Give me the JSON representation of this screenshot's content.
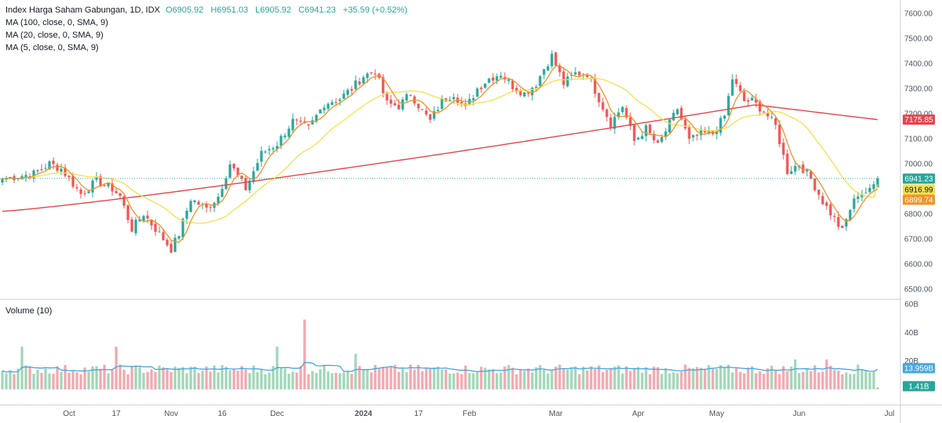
{
  "legend": {
    "symbol": "Index Harga Saham Gabungan, 1D, IDX",
    "open": "O6905.92",
    "high": "H6951.03",
    "low": "L6905.92",
    "close": "C6941.23",
    "change": "+35.59 (+0.52%)",
    "ma100": "MA (100, close, 0, SMA, 9)",
    "ma20": "MA (20, close, 0, SMA, 9)",
    "ma5": "MA (5, close, 0, SMA, 9)"
  },
  "volume_label": "Volume (10)",
  "colors": {
    "up": "#26a69a",
    "down": "#ef5350",
    "up_volume": "#9fd6b7",
    "down_volume": "#f2a7ae",
    "ma100": "#e0474c",
    "ma20": "#f5e04c",
    "ma5": "#f0922b",
    "volume_ma": "#48a6e0"
  },
  "price_tags": [
    {
      "label": "7175.85",
      "value": 7175.85,
      "bg": "#e0474c",
      "text": "light"
    },
    {
      "label": "6941.23",
      "value": 6941.23,
      "bg": "#26a69a",
      "text": "light"
    },
    {
      "label": "6916.99",
      "value": 6916.99,
      "bg": "#f5e04c",
      "text": "dark"
    },
    {
      "label": "6899.74",
      "value": 6899.74,
      "bg": "#f0922b",
      "text": "light"
    }
  ],
  "volume_tags": [
    {
      "label": "13.959B",
      "value": 13.959,
      "bg": "#48a6e0"
    },
    {
      "label": "1.41B",
      "value": 1.41,
      "bg": "#26a69a"
    }
  ],
  "chart_data": {
    "type": "candlestick",
    "title": "Index Harga Saham Gabungan, 1D, IDX",
    "y_ticks": [
      "7600.00",
      "7500.00",
      "7400.00",
      "7300.00",
      "7200.00",
      "7100.00",
      "7000.00",
      "6900.00",
      "6800.00",
      "6700.00",
      "6600.00",
      "6500.00"
    ],
    "ylim": [
      6465,
      7665
    ],
    "volume_ticks": [
      "60B",
      "40B",
      "20B"
    ],
    "volume_ylim": [
      0,
      60
    ],
    "x_ticks": [
      "Oct",
      "17",
      "Nov",
      "16",
      "Dec",
      "2024",
      "17",
      "Feb",
      "Mar",
      "Apr",
      "May",
      "Jun",
      "Jul"
    ],
    "grid": false,
    "series_names": [
      "MA (100, close, 0, SMA, 9)",
      "MA (20, close, 0, SMA, 9)",
      "MA (5, close, 0, SMA, 9)",
      "Volume (10)"
    ],
    "close_anchors": [
      [
        0,
        6940
      ],
      [
        8,
        6960
      ],
      [
        12,
        7000
      ],
      [
        15,
        6980
      ],
      [
        20,
        6880
      ],
      [
        24,
        6930
      ],
      [
        28,
        6900
      ],
      [
        30,
        6870
      ],
      [
        33,
        6740
      ],
      [
        36,
        6800
      ],
      [
        40,
        6720
      ],
      [
        43,
        6660
      ],
      [
        45,
        6720
      ],
      [
        48,
        6860
      ],
      [
        52,
        6820
      ],
      [
        55,
        6870
      ],
      [
        58,
        7000
      ],
      [
        62,
        6900
      ],
      [
        66,
        7040
      ],
      [
        70,
        7080
      ],
      [
        74,
        7170
      ],
      [
        78,
        7140
      ],
      [
        82,
        7240
      ],
      [
        86,
        7260
      ],
      [
        89,
        7300
      ],
      [
        92,
        7350
      ],
      [
        95,
        7370
      ],
      [
        98,
        7240
      ],
      [
        101,
        7230
      ],
      [
        104,
        7280
      ],
      [
        107,
        7210
      ],
      [
        109,
        7170
      ],
      [
        112,
        7250
      ],
      [
        115,
        7280
      ],
      [
        118,
        7220
      ],
      [
        121,
        7300
      ],
      [
        124,
        7340
      ],
      [
        127,
        7360
      ],
      [
        130,
        7310
      ],
      [
        133,
        7280
      ],
      [
        136,
        7320
      ],
      [
        138,
        7380
      ],
      [
        140,
        7430
      ],
      [
        143,
        7320
      ],
      [
        146,
        7360
      ],
      [
        149,
        7360
      ],
      [
        152,
        7260
      ],
      [
        155,
        7160
      ],
      [
        158,
        7230
      ],
      [
        161,
        7090
      ],
      [
        164,
        7140
      ],
      [
        167,
        7070
      ],
      [
        170,
        7160
      ],
      [
        172,
        7220
      ],
      [
        175,
        7090
      ],
      [
        178,
        7120
      ],
      [
        181,
        7120
      ],
      [
        184,
        7190
      ],
      [
        186,
        7340
      ],
      [
        189,
        7250
      ],
      [
        191,
        7250
      ],
      [
        194,
        7210
      ],
      [
        197,
        7150
      ],
      [
        200,
        6970
      ],
      [
        203,
        7000
      ],
      [
        206,
        6940
      ],
      [
        209,
        6850
      ],
      [
        212,
        6780
      ],
      [
        214,
        6730
      ],
      [
        216,
        6820
      ],
      [
        218,
        6880
      ],
      [
        221,
        6890
      ],
      [
        223,
        6941.23
      ]
    ],
    "last_candle": {
      "open": 6905.92,
      "high": 6951.03,
      "low": 6905.92,
      "close": 6941.23,
      "change": 35.59,
      "change_pct": 0.52
    },
    "moving_averages": {
      "ma100_last": 7175.85,
      "ma20_last": 6916.99,
      "ma5_last": 6899.74
    },
    "volume_units": "B",
    "volume_ma_last": 13.959,
    "volume_last": 1.41,
    "volume_baseline": 13.5,
    "volume_spikes": [
      {
        "i": 5,
        "v": 30
      },
      {
        "i": 29,
        "v": 30
      },
      {
        "i": 70,
        "v": 30
      },
      {
        "i": 77,
        "v": 49
      },
      {
        "i": 90,
        "v": 25
      },
      {
        "i": 202,
        "v": 21
      },
      {
        "i": 210,
        "v": 21
      }
    ]
  }
}
